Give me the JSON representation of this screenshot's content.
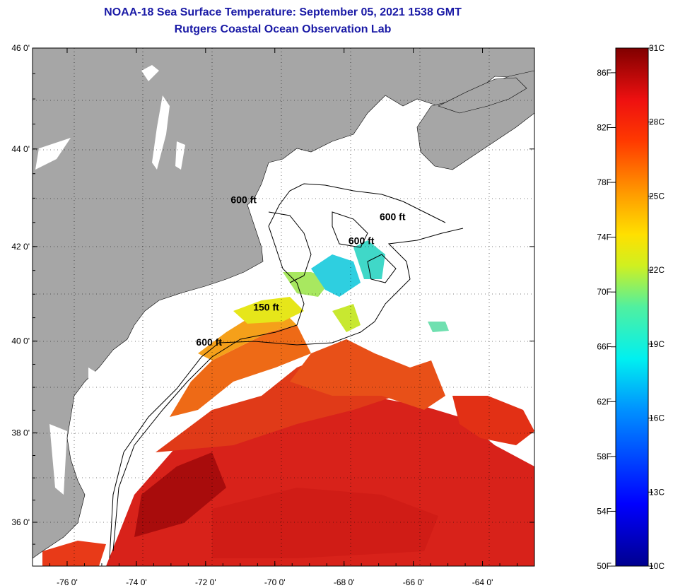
{
  "title": "NOAA-18 Sea Surface Temperature:  September 05, 2021 1538 GMT",
  "subtitle": "Rutgers Coastal Ocean Observation Lab",
  "lat_ticks": [
    {
      "value": 46,
      "label": "46 0'"
    },
    {
      "value": 44,
      "label": "44 0'"
    },
    {
      "value": 42,
      "label": "42 0'"
    },
    {
      "value": 40,
      "label": "40 0'"
    },
    {
      "value": 38,
      "label": "38 0'"
    },
    {
      "value": 36,
      "label": "36 0'"
    }
  ],
  "lon_ticks": [
    {
      "value": -76,
      "label": "-76 0'"
    },
    {
      "value": -74,
      "label": "-74 0'"
    },
    {
      "value": -72,
      "label": "-72 0'"
    },
    {
      "value": -70,
      "label": "-70 0'"
    },
    {
      "value": -68,
      "label": "-68 0'"
    },
    {
      "value": -66,
      "label": "-66 0'"
    },
    {
      "value": -64,
      "label": "-64 0'"
    }
  ],
  "lat_range": [
    35,
    46
  ],
  "lon_range": [
    -77,
    -62.5
  ],
  "contour_labels": [
    {
      "text": "600 ft",
      "lon": -70.9,
      "lat": 42.9
    },
    {
      "text": "600 ft",
      "lon": -66.6,
      "lat": 42.55
    },
    {
      "text": "600 ft",
      "lon": -67.5,
      "lat": 42.05
    },
    {
      "text": "150 ft",
      "lon": -70.25,
      "lat": 40.65
    },
    {
      "text": "600 ft",
      "lon": -71.9,
      "lat": 39.9
    }
  ],
  "colorbar": {
    "fahrenheit": [
      {
        "value": 86,
        "label": "86F"
      },
      {
        "value": 82,
        "label": "82F"
      },
      {
        "value": 78,
        "label": "78F"
      },
      {
        "value": 74,
        "label": "74F"
      },
      {
        "value": 70,
        "label": "70F"
      },
      {
        "value": 66,
        "label": "66F"
      },
      {
        "value": 62,
        "label": "62F"
      },
      {
        "value": 58,
        "label": "58F"
      },
      {
        "value": 54,
        "label": "54F"
      },
      {
        "value": 50,
        "label": "50F"
      }
    ],
    "celsius": [
      {
        "value": 31,
        "label": "31C"
      },
      {
        "value": 28,
        "label": "28C"
      },
      {
        "value": 25,
        "label": "25C"
      },
      {
        "value": 22,
        "label": "22C"
      },
      {
        "value": 19,
        "label": "19C"
      },
      {
        "value": 16,
        "label": "16C"
      },
      {
        "value": 13,
        "label": "13C"
      },
      {
        "value": 10,
        "label": "10C"
      }
    ],
    "range_c": [
      10,
      31
    ]
  },
  "colors": {
    "land": "#a6a6a6",
    "title": "#1a1aa6",
    "sst_red": "#d8221a",
    "sst_dark": "#a80c0c",
    "sst_orange": "#ee6a16",
    "sst_yellow": "#e6e61a",
    "sst_cyan": "#2ecfe0"
  }
}
